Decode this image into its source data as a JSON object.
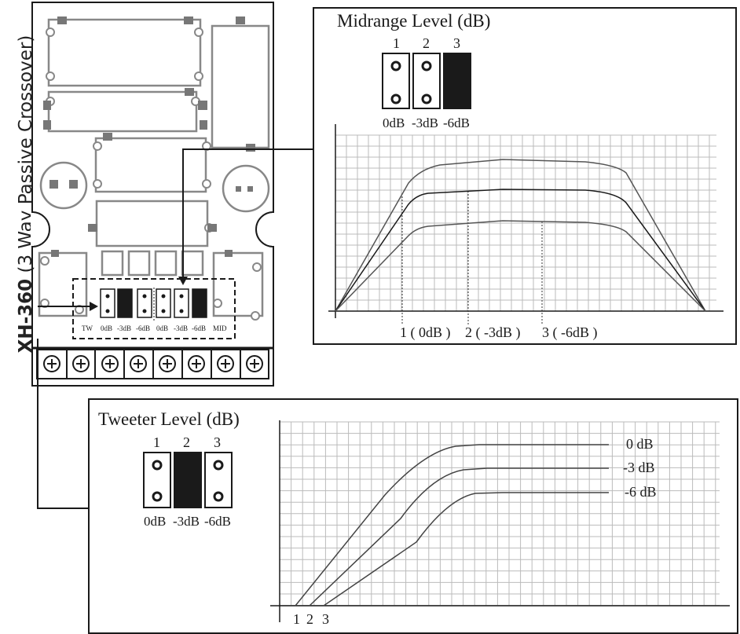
{
  "board": {
    "model": "XH-360",
    "subtitle": "(3 Way Passive Crossover)",
    "jumper_labels": [
      "TW",
      "0dB",
      "-3dB",
      "-6dB",
      "0dB",
      "-3dB",
      "-6dB",
      "MID"
    ]
  },
  "midrange": {
    "title": "Midrange Level (dB)",
    "jumper_numbers": [
      "1",
      "2",
      "3"
    ],
    "jumper_levels": [
      "0dB",
      "-3dB",
      "-6dB"
    ],
    "selected_jumper": 3,
    "axis_labels": [
      "1 ( 0dB )",
      "2 ( -3dB )",
      "3 ( -6dB )"
    ]
  },
  "tweeter": {
    "title": "Tweeter Level (dB)",
    "jumper_numbers": [
      "1",
      "2",
      "3"
    ],
    "jumper_levels": [
      "0dB",
      "-3dB",
      "-6dB"
    ],
    "selected_jumper": 2,
    "curve_labels": [
      "0 dB",
      "-3 dB",
      "-6 dB"
    ],
    "axis_labels": [
      "1",
      "2",
      "3"
    ]
  },
  "colors": {
    "line": "#1a1a1a",
    "pcb_part": "#888888",
    "pad": "#777777"
  }
}
